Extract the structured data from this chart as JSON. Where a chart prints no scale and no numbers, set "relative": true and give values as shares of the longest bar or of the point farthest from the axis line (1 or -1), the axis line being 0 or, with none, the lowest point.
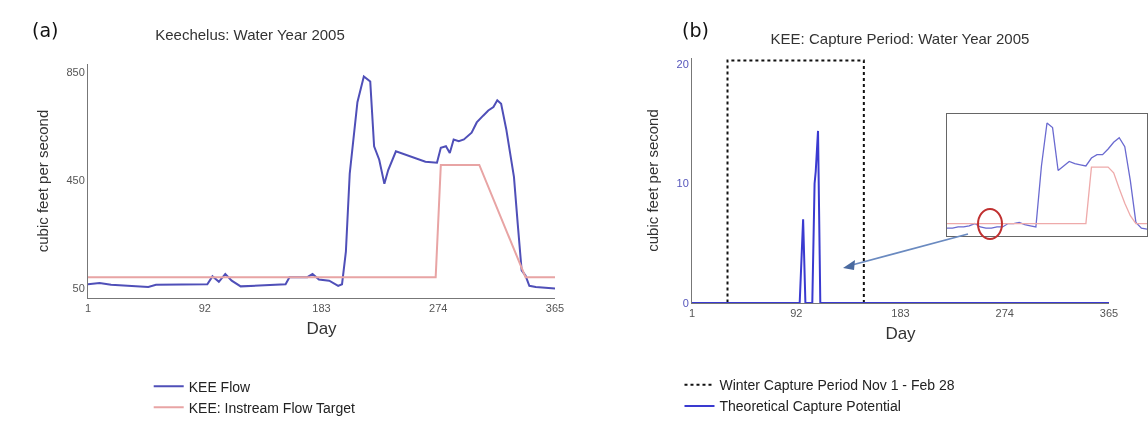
{
  "chart_data": [
    {
      "type": "line",
      "title": "Keechelus: Water Year 2005",
      "annotations": [
        "(a)"
      ],
      "xlabel": "Day",
      "ylabel": "cubic feet per second",
      "xlim": [
        1,
        365
      ],
      "xticks": [
        1,
        92,
        183,
        274,
        365
      ],
      "ylim": [
        15,
        880
      ],
      "yticks": [
        50,
        450,
        850
      ],
      "legend": "bottom",
      "series": [
        {
          "name": "KEE Flow",
          "color": "#4f4fb8",
          "x": [
            1,
            10,
            19,
            48,
            54,
            94,
            98,
            103,
            108,
            113,
            120,
            155,
            158,
            172,
            176,
            181,
            189,
            196,
            199,
            202,
            205,
            211,
            214,
            216,
            221,
            224,
            228,
            232,
            235,
            241,
            264,
            273,
            276,
            280,
            283,
            286,
            290,
            294,
            300,
            304,
            309,
            313,
            317,
            320,
            323,
            327,
            333,
            336,
            339,
            342,
            345,
            350,
            365
          ],
          "values": [
            66,
            70,
            64,
            56,
            64,
            66,
            95,
            75,
            104,
            79,
            58,
            66,
            92,
            92,
            104,
            83,
            79,
            60,
            66,
            186,
            475,
            739,
            796,
            834,
            815,
            576,
            526,
            437,
            488,
            557,
            519,
            515,
            570,
            576,
            551,
            601,
            595,
            601,
            626,
            664,
            689,
            708,
            721,
            746,
            733,
            639,
            463,
            286,
            117,
            98,
            60,
            56,
            50
          ]
        },
        {
          "name": "KEE: Instream Flow Target",
          "color": "#e8a4a4",
          "x": [
            1,
            272,
            276,
            306,
            342,
            365
          ],
          "values": [
            92,
            92,
            507,
            507,
            92,
            92
          ]
        }
      ]
    },
    {
      "type": "line",
      "title": "KEE: Capture Period: Water Year 2005",
      "annotations": [
        "(b)"
      ],
      "xlabel": "Day",
      "ylabel": "cubic feet per second",
      "xlim": [
        1,
        365
      ],
      "xticks": [
        1,
        92,
        183,
        274,
        365
      ],
      "ylim": [
        0,
        20.5
      ],
      "yticks": [
        0,
        10,
        20
      ],
      "legend": "bottom",
      "series": [
        {
          "name": "Winter Capture Period Nov 1 - Feb 28",
          "color": "#111111",
          "line_style": "dotted",
          "x": [
            1,
            32,
            32,
            151,
            151,
            365
          ],
          "values": [
            0,
            0,
            20.3,
            20.3,
            0,
            0
          ]
        },
        {
          "name": "Theoretical Capture Potential",
          "color": "#3a3ad0",
          "x": [
            1,
            95,
            98,
            100,
            106,
            108,
            109,
            111,
            113,
            365
          ],
          "values": [
            0,
            0,
            7,
            0,
            0,
            10,
            11,
            14.4,
            0,
            0
          ]
        }
      ]
    },
    {
      "type": "line",
      "relative": true,
      "categories": [
        null,
        null,
        null,
        null,
        null,
        null,
        null,
        null,
        null,
        null,
        null,
        null,
        null,
        null,
        null,
        null,
        null,
        null,
        null,
        null,
        null,
        null,
        null,
        null,
        null,
        null,
        null,
        null,
        null,
        null,
        null,
        null,
        null,
        null,
        null,
        null,
        null
      ],
      "series": [
        {
          "color": "#6a6ad0",
          "values": [
            0.07,
            0.07,
            0.08,
            0.08,
            0.09,
            0.11,
            0.08,
            0.07,
            0.07,
            0.08,
            0.08,
            0.11,
            0.11,
            0.12,
            0.1,
            0.09,
            0.08,
            0.62,
            1,
            0.96,
            0.58,
            0.62,
            0.66,
            0.64,
            0.63,
            0.62,
            0.69,
            0.72,
            0.72,
            0.77,
            0.83,
            0.87,
            0.79,
            0.49,
            0.12,
            0.07,
            0.06
          ]
        },
        {
          "color": "#eeaaaa",
          "values": [
            0.11,
            0.11,
            0.11,
            0.11,
            0.11,
            0.11,
            0.11,
            0.11,
            0.11,
            0.11,
            0.11,
            0.11,
            0.11,
            0.11,
            0.11,
            0.11,
            0.11,
            0.11,
            0.11,
            0.11,
            0.11,
            0.11,
            0.11,
            0.11,
            0.11,
            0.11,
            0.61,
            0.61,
            0.61,
            0.61,
            0.56,
            0.42,
            0.29,
            0.18,
            0.11,
            0.11,
            0.11
          ]
        }
      ]
    }
  ]
}
